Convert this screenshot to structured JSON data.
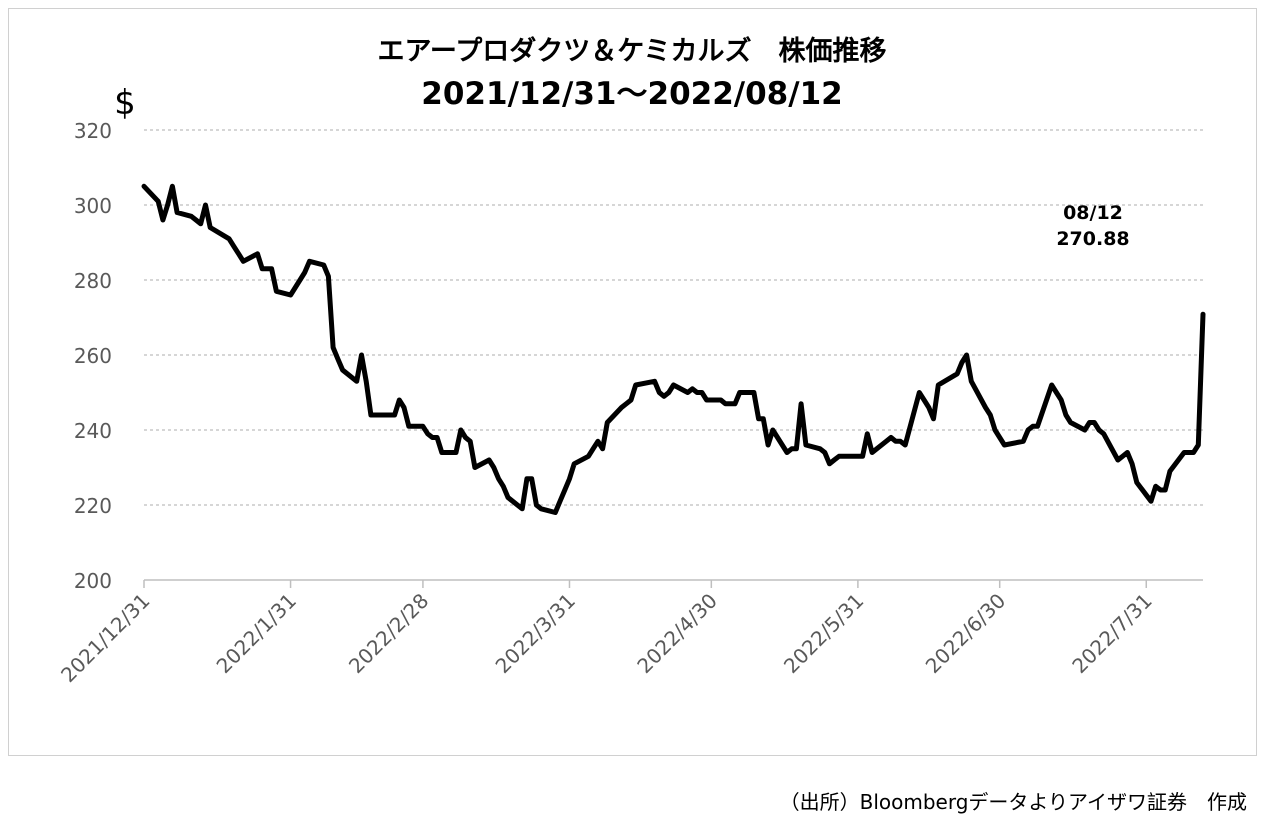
{
  "chart_data": {
    "type": "line",
    "title": "エアープロダクツ＆ケミカルズ　株価推移",
    "subtitle": "2021/12/31～2022/08/12",
    "ylabel": "$",
    "xlabel": "",
    "ylim": [
      200,
      320
    ],
    "yticks": [
      200,
      220,
      240,
      260,
      280,
      300,
      320
    ],
    "xlim": [
      "2021-12-31",
      "2022-08-12"
    ],
    "xticks": [
      {
        "date": "2021-12-31",
        "label": "2021/12/31"
      },
      {
        "date": "2022-01-31",
        "label": "2022/1/31"
      },
      {
        "date": "2022-02-28",
        "label": "2022/2/28"
      },
      {
        "date": "2022-03-31",
        "label": "2022/3/31"
      },
      {
        "date": "2022-04-30",
        "label": "2022/4/30"
      },
      {
        "date": "2022-05-31",
        "label": "2022/5/31"
      },
      {
        "date": "2022-06-30",
        "label": "2022/6/30"
      },
      {
        "date": "2022-07-31",
        "label": "2022/7/31"
      }
    ],
    "grid": true,
    "series": [
      {
        "color": "#000000",
        "points": [
          [
            "2021-12-31",
            305
          ],
          [
            "2022-01-03",
            301
          ],
          [
            "2022-01-04",
            296
          ],
          [
            "2022-01-05",
            300
          ],
          [
            "2022-01-06",
            305
          ],
          [
            "2022-01-07",
            298
          ],
          [
            "2022-01-10",
            297
          ],
          [
            "2022-01-11",
            296
          ],
          [
            "2022-01-12",
            295
          ],
          [
            "2022-01-13",
            300
          ],
          [
            "2022-01-14",
            294
          ],
          [
            "2022-01-18",
            291
          ],
          [
            "2022-01-19",
            289
          ],
          [
            "2022-01-20",
            287
          ],
          [
            "2022-01-21",
            285
          ],
          [
            "2022-01-24",
            287
          ],
          [
            "2022-01-25",
            283
          ],
          [
            "2022-01-26",
            283
          ],
          [
            "2022-01-27",
            283
          ],
          [
            "2022-01-28",
            277
          ],
          [
            "2022-01-31",
            276
          ],
          [
            "2022-02-01",
            278
          ],
          [
            "2022-02-02",
            280
          ],
          [
            "2022-02-03",
            282
          ],
          [
            "2022-02-04",
            285
          ],
          [
            "2022-02-07",
            284
          ],
          [
            "2022-02-08",
            281
          ],
          [
            "2022-02-09",
            262
          ],
          [
            "2022-02-10",
            259
          ],
          [
            "2022-02-11",
            256
          ],
          [
            "2022-02-14",
            253
          ],
          [
            "2022-02-15",
            260
          ],
          [
            "2022-02-16",
            253
          ],
          [
            "2022-02-17",
            244
          ],
          [
            "2022-02-18",
            244
          ],
          [
            "2022-02-22",
            244
          ],
          [
            "2022-02-23",
            248
          ],
          [
            "2022-02-24",
            246
          ],
          [
            "2022-02-25",
            241
          ],
          [
            "2022-02-28",
            241
          ],
          [
            "2022-03-01",
            239
          ],
          [
            "2022-03-02",
            238
          ],
          [
            "2022-03-03",
            238
          ],
          [
            "2022-03-04",
            234
          ],
          [
            "2022-03-07",
            234
          ],
          [
            "2022-03-08",
            240
          ],
          [
            "2022-03-09",
            238
          ],
          [
            "2022-03-10",
            237
          ],
          [
            "2022-03-11",
            230
          ],
          [
            "2022-03-14",
            232
          ],
          [
            "2022-03-15",
            230
          ],
          [
            "2022-03-16",
            227
          ],
          [
            "2022-03-17",
            225
          ],
          [
            "2022-03-18",
            222
          ],
          [
            "2022-03-21",
            219
          ],
          [
            "2022-03-22",
            227
          ],
          [
            "2022-03-23",
            227
          ],
          [
            "2022-03-24",
            220
          ],
          [
            "2022-03-25",
            219
          ],
          [
            "2022-03-28",
            218
          ],
          [
            "2022-03-29",
            221
          ],
          [
            "2022-03-30",
            224
          ],
          [
            "2022-03-31",
            227
          ],
          [
            "2022-04-01",
            231
          ],
          [
            "2022-04-04",
            233
          ],
          [
            "2022-04-05",
            235
          ],
          [
            "2022-04-06",
            237
          ],
          [
            "2022-04-07",
            235
          ],
          [
            "2022-04-08",
            242
          ],
          [
            "2022-04-11",
            246
          ],
          [
            "2022-04-12",
            247
          ],
          [
            "2022-04-13",
            248
          ],
          [
            "2022-04-14",
            252
          ],
          [
            "2022-04-18",
            253
          ],
          [
            "2022-04-19",
            250
          ],
          [
            "2022-04-20",
            249
          ],
          [
            "2022-04-21",
            250
          ],
          [
            "2022-04-22",
            252
          ],
          [
            "2022-04-25",
            250
          ],
          [
            "2022-04-26",
            251
          ],
          [
            "2022-04-27",
            250
          ],
          [
            "2022-04-28",
            250
          ],
          [
            "2022-04-29",
            248
          ],
          [
            "2022-05-02",
            248
          ],
          [
            "2022-05-03",
            247
          ],
          [
            "2022-05-04",
            247
          ],
          [
            "2022-05-05",
            247
          ],
          [
            "2022-05-06",
            250
          ],
          [
            "2022-05-09",
            250
          ],
          [
            "2022-05-10",
            243
          ],
          [
            "2022-05-11",
            243
          ],
          [
            "2022-05-12",
            236
          ],
          [
            "2022-05-13",
            240
          ],
          [
            "2022-05-16",
            234
          ],
          [
            "2022-05-17",
            235
          ],
          [
            "2022-05-18",
            235
          ],
          [
            "2022-05-19",
            247
          ],
          [
            "2022-05-20",
            236
          ],
          [
            "2022-05-23",
            235
          ],
          [
            "2022-05-24",
            234
          ],
          [
            "2022-05-25",
            231
          ],
          [
            "2022-05-26",
            232
          ],
          [
            "2022-05-27",
            233
          ],
          [
            "2022-05-31",
            233
          ],
          [
            "2022-06-01",
            233
          ],
          [
            "2022-06-02",
            239
          ],
          [
            "2022-06-03",
            234
          ],
          [
            "2022-06-06",
            237
          ],
          [
            "2022-06-07",
            238
          ],
          [
            "2022-06-08",
            237
          ],
          [
            "2022-06-09",
            237
          ],
          [
            "2022-06-10",
            236
          ],
          [
            "2022-06-13",
            250
          ],
          [
            "2022-06-14",
            248
          ],
          [
            "2022-06-15",
            246
          ],
          [
            "2022-06-16",
            243
          ],
          [
            "2022-06-17",
            252
          ],
          [
            "2022-06-21",
            255
          ],
          [
            "2022-06-22",
            258
          ],
          [
            "2022-06-23",
            260
          ],
          [
            "2022-06-24",
            253
          ],
          [
            "2022-06-27",
            246
          ],
          [
            "2022-06-28",
            244
          ],
          [
            "2022-06-29",
            240
          ],
          [
            "2022-06-30",
            238
          ],
          [
            "2022-07-01",
            236
          ],
          [
            "2022-07-05",
            237
          ],
          [
            "2022-07-06",
            240
          ],
          [
            "2022-07-07",
            241
          ],
          [
            "2022-07-08",
            241
          ],
          [
            "2022-07-11",
            252
          ],
          [
            "2022-07-12",
            250
          ],
          [
            "2022-07-13",
            248
          ],
          [
            "2022-07-14",
            244
          ],
          [
            "2022-07-15",
            242
          ],
          [
            "2022-07-18",
            240
          ],
          [
            "2022-07-19",
            242
          ],
          [
            "2022-07-20",
            242
          ],
          [
            "2022-07-21",
            240
          ],
          [
            "2022-07-22",
            239
          ],
          [
            "2022-07-25",
            232
          ],
          [
            "2022-07-26",
            233
          ],
          [
            "2022-07-27",
            234
          ],
          [
            "2022-07-28",
            231
          ],
          [
            "2022-07-29",
            226
          ],
          [
            "2022-08-01",
            221
          ],
          [
            "2022-08-02",
            225
          ],
          [
            "2022-08-03",
            224
          ],
          [
            "2022-08-04",
            224
          ],
          [
            "2022-08-05",
            229
          ],
          [
            "2022-08-08",
            234
          ],
          [
            "2022-08-09",
            234
          ],
          [
            "2022-08-10",
            234
          ],
          [
            "2022-08-11",
            236
          ],
          [
            "2022-08-12",
            270.88
          ]
        ]
      }
    ],
    "annotation": {
      "date_label": "08/12",
      "value_label": "270.88"
    }
  },
  "source_note": "（出所）Bloombergデータよりアイザワ証券　作成"
}
